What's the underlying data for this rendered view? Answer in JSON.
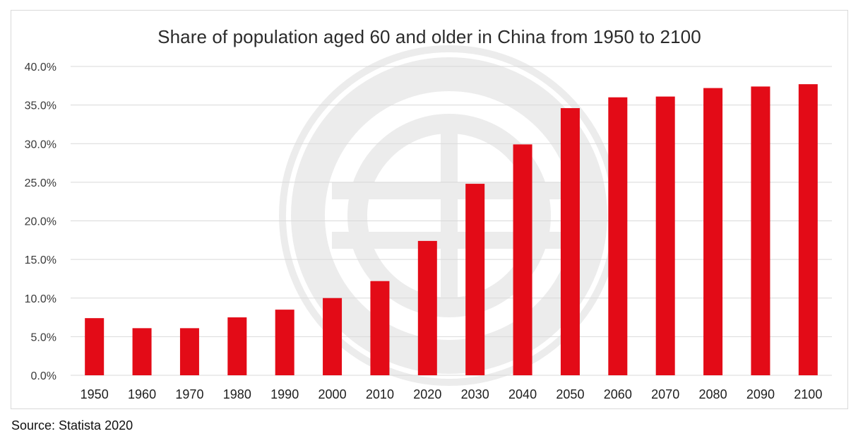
{
  "chart_data": {
    "type": "bar",
    "title": "Share of population aged 60 and older in China from 1950 to 2100",
    "xlabel": "",
    "ylabel": "",
    "categories": [
      "1950",
      "1960",
      "1970",
      "1980",
      "1990",
      "2000",
      "2010",
      "2020",
      "2030",
      "2040",
      "2050",
      "2060",
      "2070",
      "2080",
      "2090",
      "2100"
    ],
    "values": [
      7.4,
      6.1,
      6.1,
      7.5,
      8.5,
      10.0,
      12.2,
      17.4,
      24.8,
      29.9,
      34.6,
      36.0,
      36.1,
      37.2,
      37.4,
      37.7
    ],
    "ylim": [
      0,
      40
    ],
    "yticks": [
      "0.0%",
      "5.0%",
      "10.0%",
      "15.0%",
      "20.0%",
      "25.0%",
      "30.0%",
      "35.0%",
      "40.0%"
    ],
    "grid": true,
    "bar_color": "#e30b17",
    "grid_color": "#d9d9d9"
  },
  "footer": {
    "source": "Source: Statista 2020"
  },
  "watermark": {
    "icon": "circle-logo-watermark-icon"
  }
}
